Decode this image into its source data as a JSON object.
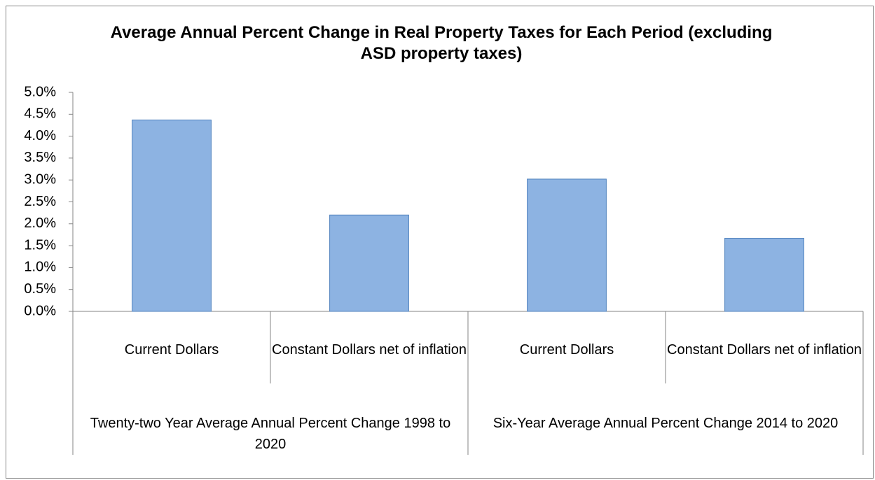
{
  "chart_data": {
    "type": "bar",
    "title": "Average Annual Percent Change in Real Property Taxes for Each Period (excluding ASD property taxes)",
    "categories": [
      "Current Dollars",
      "Constant Dollars net of inflation",
      "Current Dollars",
      "Constant Dollars net of inflation"
    ],
    "group_labels": [
      "Twenty-two Year Average Annual Percent Change 1998 to 2020",
      "Six-Year Average Annual Percent Change 2014 to 2020"
    ],
    "values": [
      4.37,
      2.2,
      3.02,
      1.67
    ],
    "color": "#8db3e2",
    "edge_color": "#4f81bd",
    "ylim": [
      0,
      5
    ],
    "yticks": [
      {
        "value": 0,
        "label": "0.0%"
      },
      {
        "value": 0.5,
        "label": "0.5%"
      },
      {
        "value": 1,
        "label": "1.0%"
      },
      {
        "value": 1.5,
        "label": "1.5%"
      },
      {
        "value": 2,
        "label": "2.0%"
      },
      {
        "value": 2.5,
        "label": "2.5%"
      },
      {
        "value": 3,
        "label": "3.0%"
      },
      {
        "value": 3.5,
        "label": "3.5%"
      },
      {
        "value": 4,
        "label": "4.0%"
      },
      {
        "value": 4.5,
        "label": "4.5%"
      },
      {
        "value": 5,
        "label": "5.0%"
      }
    ],
    "grid": false
  }
}
